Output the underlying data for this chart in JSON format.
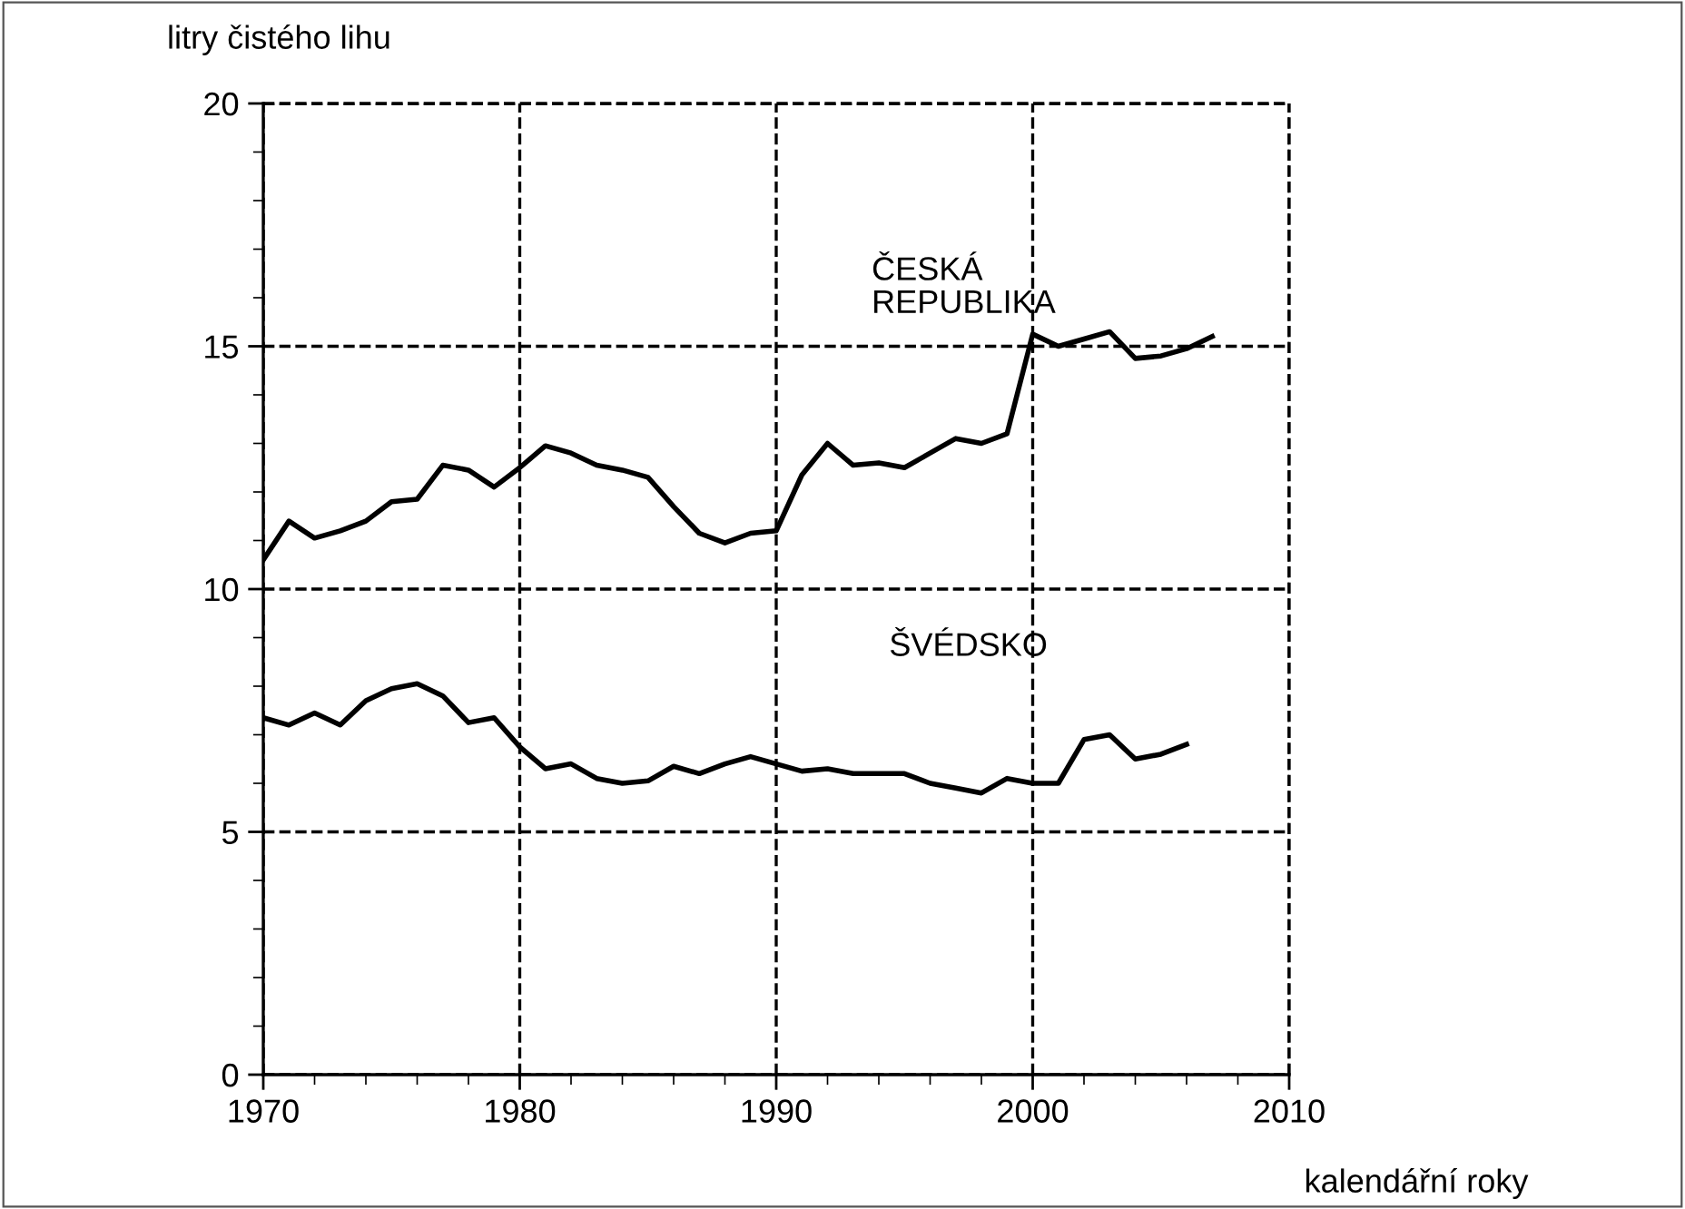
{
  "chart_data": {
    "type": "line",
    "ylabel": "litry čistého lihu",
    "xlabel": "kalendářní roky",
    "xlim": [
      1970,
      2010
    ],
    "ylim": [
      0,
      20
    ],
    "xticks": [
      1970,
      1980,
      1990,
      2000,
      2010
    ],
    "yticks": [
      0,
      5,
      10,
      15,
      20
    ],
    "grid": true,
    "legend": false,
    "series": [
      {
        "name": "ČESKÁ\nREPUBLIKA",
        "color": "#000000",
        "x": [
          1970,
          1971,
          1972,
          1973,
          1974,
          1975,
          1976,
          1977,
          1978,
          1979,
          1980,
          1981,
          1982,
          1983,
          1984,
          1985,
          1986,
          1987,
          1988,
          1989,
          1990,
          1991,
          1992,
          1993,
          1994,
          1995,
          1996,
          1997,
          1998,
          1999,
          2000,
          2001,
          2002,
          2003,
          2004,
          2005,
          2006,
          2007
        ],
        "values": [
          10.6,
          11.4,
          11.05,
          11.2,
          11.4,
          11.8,
          11.85,
          12.55,
          12.45,
          12.1,
          12.5,
          12.95,
          12.8,
          12.55,
          12.45,
          12.3,
          11.7,
          11.15,
          10.95,
          11.15,
          11.2,
          12.35,
          13.0,
          12.55,
          12.6,
          12.5,
          12.8,
          13.1,
          13.0,
          13.2,
          15.25,
          15.0,
          15.15,
          15.3,
          14.75,
          14.8,
          14.95,
          15.2
        ]
      },
      {
        "name": "ŠVÉDSKO",
        "color": "#000000",
        "x": [
          1970,
          1971,
          1972,
          1973,
          1974,
          1975,
          1976,
          1977,
          1978,
          1979,
          1980,
          1981,
          1982,
          1983,
          1984,
          1985,
          1986,
          1987,
          1988,
          1989,
          1990,
          1991,
          1992,
          1993,
          1994,
          1995,
          1996,
          1997,
          1998,
          1999,
          2000,
          2001,
          2002,
          2003,
          2004,
          2005,
          2006
        ],
        "values": [
          7.35,
          7.2,
          7.45,
          7.2,
          7.7,
          7.95,
          8.05,
          7.8,
          7.25,
          7.35,
          6.75,
          6.3,
          6.4,
          6.1,
          6.0,
          6.05,
          6.35,
          6.2,
          6.4,
          6.55,
          6.4,
          6.25,
          6.3,
          6.2,
          6.2,
          6.2,
          6.0,
          5.9,
          5.8,
          6.1,
          6.0,
          6.0,
          6.9,
          7.0,
          6.5,
          6.6,
          6.8
        ]
      }
    ]
  }
}
